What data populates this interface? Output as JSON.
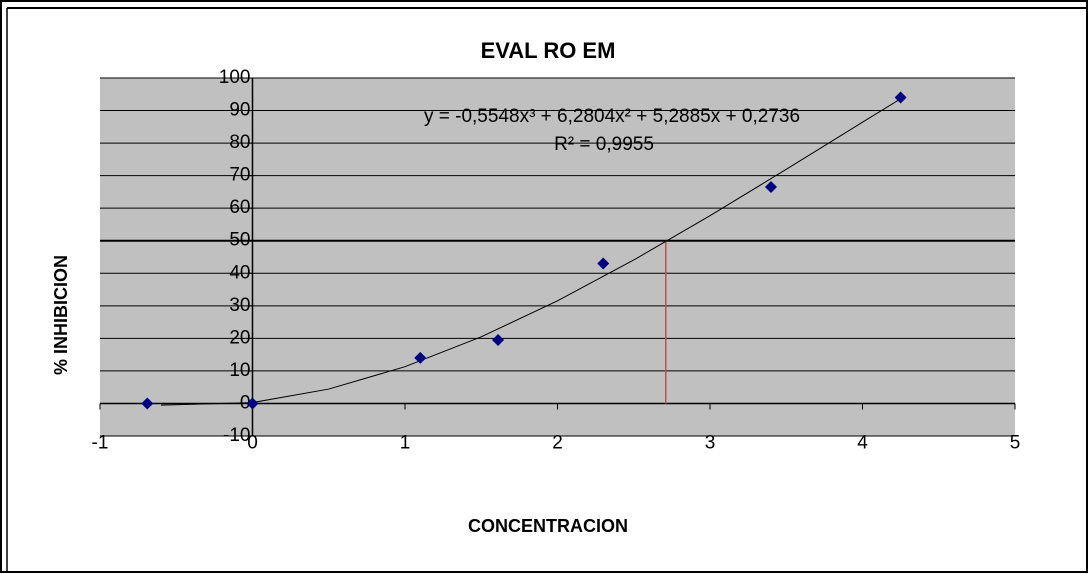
{
  "chart_data": {
    "type": "scatter",
    "title": "EVAL RO EM",
    "x_label": "CONCENTRACION",
    "y_label": "% INHIBICION",
    "series": [
      {
        "color": "#000080",
        "x": [
          -0.69,
          0,
          1.1,
          1.61,
          2.3,
          3.4,
          4.25
        ],
        "values": [
          0,
          0,
          14,
          19.5,
          43,
          66.5,
          94
        ]
      },
      {
        "color": "#000000",
        "x": [
          -0.6,
          0,
          0.5,
          1,
          1.5,
          2,
          2.5,
          3,
          3.5,
          4,
          4.25
        ],
        "values": [
          -0.52,
          0.27,
          4.42,
          11.29,
          20.47,
          31.53,
          44.08,
          57.69,
          71.93,
          86.41,
          93.6
        ]
      }
    ],
    "trendline_equation": "y = -0,5548x³ + 6,2804x² + 5,2885x + 0,2736",
    "trendline_r2": "R² = 0,9955",
    "hline": {
      "y": 50,
      "color": "#000000"
    },
    "vline": {
      "x": 2.71,
      "ymin": 0,
      "ymax": 50,
      "color": "#c0504d"
    },
    "xlim": [
      -1,
      5
    ],
    "xticks": [
      -1,
      0,
      1,
      2,
      3,
      4,
      5
    ],
    "ylim": [
      -10,
      100
    ],
    "yticks": [
      -10,
      0,
      10,
      20,
      30,
      40,
      50,
      60,
      70,
      80,
      90,
      100
    ],
    "grid": true,
    "background": "#c0c0c0"
  }
}
